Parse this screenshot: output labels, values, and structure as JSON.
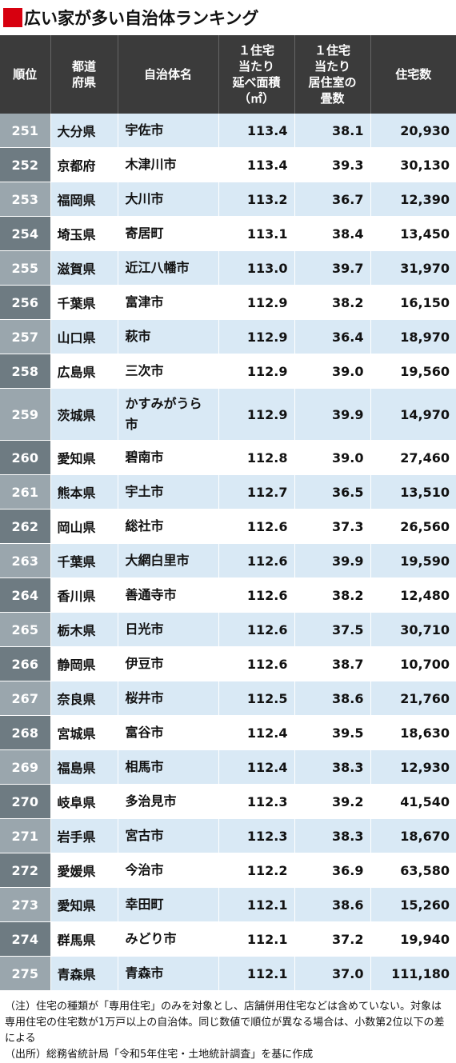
{
  "title": "広い家が多い自治体ランキング",
  "headers": [
    "順位",
    "都道府県",
    "自治体名",
    "１住宅当たり延べ面積（㎡）",
    "１住宅当たり居住室の畳数",
    "住宅数"
  ],
  "header_lines": [
    [
      "順位"
    ],
    [
      "都道",
      "府県"
    ],
    [
      "自治体名"
    ],
    [
      "１住宅",
      "当たり",
      "延べ面積",
      "（㎡）"
    ],
    [
      "１住宅",
      "当たり",
      "居住室の",
      "畳数"
    ],
    [
      "住宅数"
    ]
  ],
  "rows": [
    {
      "rank": "251",
      "pref": "大分県",
      "city": "宇佐市",
      "area": "113.4",
      "tatami": "38.1",
      "houses": "20,930"
    },
    {
      "rank": "252",
      "pref": "京都府",
      "city": "木津川市",
      "area": "113.4",
      "tatami": "39.3",
      "houses": "30,130"
    },
    {
      "rank": "253",
      "pref": "福岡県",
      "city": "大川市",
      "area": "113.2",
      "tatami": "36.7",
      "houses": "12,390"
    },
    {
      "rank": "254",
      "pref": "埼玉県",
      "city": "寄居町",
      "area": "113.1",
      "tatami": "38.4",
      "houses": "13,450"
    },
    {
      "rank": "255",
      "pref": "滋賀県",
      "city": "近江八幡市",
      "area": "113.0",
      "tatami": "39.7",
      "houses": "31,970"
    },
    {
      "rank": "256",
      "pref": "千葉県",
      "city": "富津市",
      "area": "112.9",
      "tatami": "38.2",
      "houses": "16,150"
    },
    {
      "rank": "257",
      "pref": "山口県",
      "city": "萩市",
      "area": "112.9",
      "tatami": "36.4",
      "houses": "18,970"
    },
    {
      "rank": "258",
      "pref": "広島県",
      "city": "三次市",
      "area": "112.9",
      "tatami": "39.0",
      "houses": "19,560"
    },
    {
      "rank": "259",
      "pref": "茨城県",
      "city": "かすみがうら市",
      "city_lines": [
        "かすみがうら",
        "市"
      ],
      "area": "112.9",
      "tatami": "39.9",
      "houses": "14,970"
    },
    {
      "rank": "260",
      "pref": "愛知県",
      "city": "碧南市",
      "area": "112.8",
      "tatami": "39.0",
      "houses": "27,460"
    },
    {
      "rank": "261",
      "pref": "熊本県",
      "city": "宇土市",
      "area": "112.7",
      "tatami": "36.5",
      "houses": "13,510"
    },
    {
      "rank": "262",
      "pref": "岡山県",
      "city": "総社市",
      "area": "112.6",
      "tatami": "37.3",
      "houses": "26,560"
    },
    {
      "rank": "263",
      "pref": "千葉県",
      "city": "大網白里市",
      "area": "112.6",
      "tatami": "39.9",
      "houses": "19,590"
    },
    {
      "rank": "264",
      "pref": "香川県",
      "city": "善通寺市",
      "area": "112.6",
      "tatami": "38.2",
      "houses": "12,480"
    },
    {
      "rank": "265",
      "pref": "栃木県",
      "city": "日光市",
      "area": "112.6",
      "tatami": "37.5",
      "houses": "30,710"
    },
    {
      "rank": "266",
      "pref": "静岡県",
      "city": "伊豆市",
      "area": "112.6",
      "tatami": "38.7",
      "houses": "10,700"
    },
    {
      "rank": "267",
      "pref": "奈良県",
      "city": "桜井市",
      "area": "112.5",
      "tatami": "38.6",
      "houses": "21,760"
    },
    {
      "rank": "268",
      "pref": "宮城県",
      "city": "富谷市",
      "area": "112.4",
      "tatami": "39.5",
      "houses": "18,630"
    },
    {
      "rank": "269",
      "pref": "福島県",
      "city": "相馬市",
      "area": "112.4",
      "tatami": "38.3",
      "houses": "12,930"
    },
    {
      "rank": "270",
      "pref": "岐阜県",
      "city": "多治見市",
      "area": "112.3",
      "tatami": "39.2",
      "houses": "41,540"
    },
    {
      "rank": "271",
      "pref": "岩手県",
      "city": "宮古市",
      "area": "112.3",
      "tatami": "38.3",
      "houses": "18,670"
    },
    {
      "rank": "272",
      "pref": "愛媛県",
      "city": "今治市",
      "area": "112.2",
      "tatami": "36.9",
      "houses": "63,580"
    },
    {
      "rank": "273",
      "pref": "愛知県",
      "city": "幸田町",
      "area": "112.1",
      "tatami": "38.6",
      "houses": "15,260"
    },
    {
      "rank": "274",
      "pref": "群馬県",
      "city": "みどり市",
      "area": "112.1",
      "tatami": "37.2",
      "houses": "19,940"
    },
    {
      "rank": "275",
      "pref": "青森県",
      "city": "青森市",
      "area": "112.1",
      "tatami": "37.0",
      "houses": "111,180"
    }
  ],
  "notes": {
    "note": "（注）住宅の種類が「専用住宅」のみを対象とし、店舗併用住宅などは含めていない。対象は専用住宅の住宅数が1万戸以上の自治体。同じ数値で順位が異なる場合は、小数第2位以下の差による",
    "source": "（出所）総務省統計局「令和5年住宅・土地統計調査」を基に作成"
  },
  "colors": {
    "title_square": "#d7000f",
    "header_bg": "#3b3b3b",
    "rank_light": "#9aa6ad",
    "rank_dark": "#6e7b82",
    "row_highlight": "#d9e9f5"
  }
}
